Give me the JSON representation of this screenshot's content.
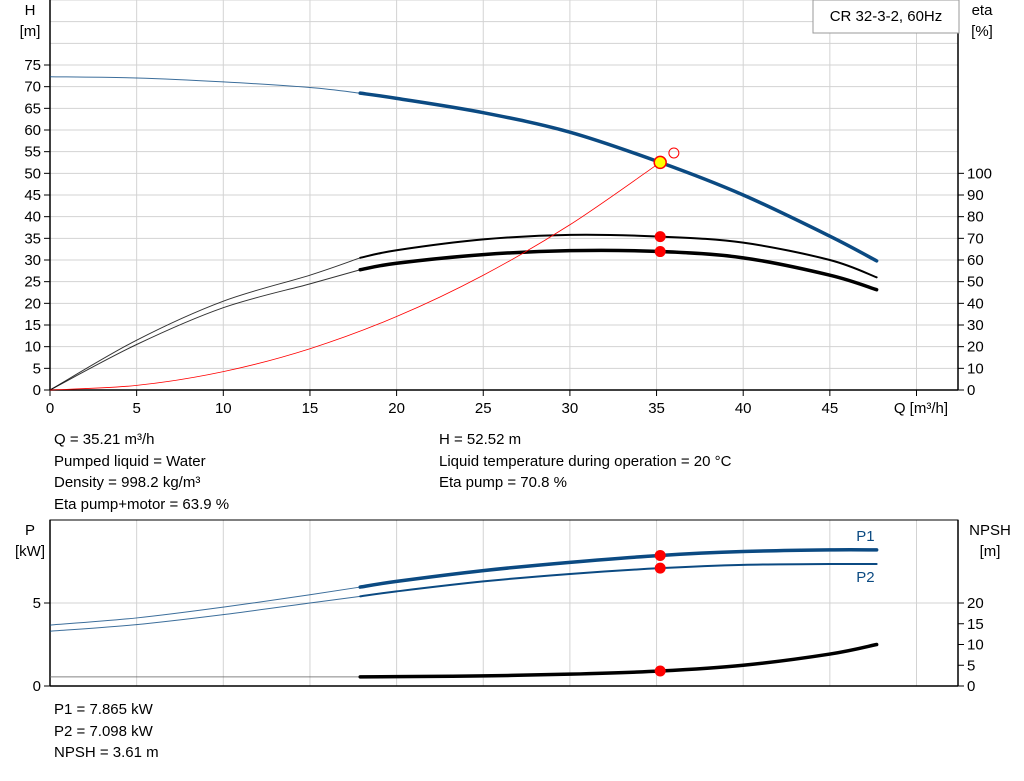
{
  "chart_data": [
    {
      "type": "line",
      "title": "CR 32-3-2, 60Hz",
      "xlabel": "Q [m³/h]",
      "ylabel": "H",
      "ylabel_unit": "[m]",
      "y2label": "eta",
      "y2label_unit": "[%]",
      "xlim": [
        0,
        52.4
      ],
      "ylim": [
        0,
        90
      ],
      "y2lim": [
        0,
        180
      ],
      "xticks": [
        0,
        5,
        10,
        15,
        20,
        25,
        30,
        35,
        40,
        45
      ],
      "yticks": [
        0,
        5,
        10,
        15,
        20,
        25,
        30,
        35,
        40,
        45,
        50,
        55,
        60,
        65,
        70,
        75
      ],
      "y2ticks": [
        0,
        10,
        20,
        30,
        40,
        50,
        60,
        70,
        80,
        90,
        100
      ],
      "grid": true,
      "series": [
        {
          "id": "H",
          "axis": "left",
          "color": "#0b4a82",
          "x": [
            0,
            5,
            10,
            15,
            17.9,
            20,
            25,
            30,
            35.21,
            40,
            45,
            47.7
          ],
          "y": [
            72.3,
            72.0,
            71.1,
            69.8,
            68.5,
            67.3,
            64.0,
            59.5,
            52.52,
            45.0,
            35.5,
            29.8
          ]
        },
        {
          "id": "eta-pump",
          "axis": "right",
          "color": "#000000",
          "x": [
            0,
            5,
            10,
            15,
            17.9,
            20,
            25,
            30,
            35.21,
            40,
            45,
            47.7
          ],
          "y": [
            0,
            23,
            41,
            53,
            61,
            64.5,
            69.5,
            71.6,
            70.8,
            68,
            60,
            52
          ]
        },
        {
          "id": "eta-pump-motor",
          "axis": "right",
          "color": "#000000",
          "x": [
            0,
            5,
            10,
            15,
            17.9,
            20,
            25,
            30,
            35.21,
            40,
            45,
            47.7
          ],
          "y": [
            0,
            21,
            38,
            49,
            55.5,
            58.5,
            62.5,
            64.3,
            63.9,
            61,
            53,
            46.3
          ]
        },
        {
          "id": "system-curve",
          "axis": "left",
          "color": "#ff0000",
          "x": [
            0,
            5,
            10,
            15,
            20,
            25,
            30,
            35.21
          ],
          "y": [
            0,
            1.06,
            4.24,
            9.53,
            16.95,
            26.48,
            38.13,
            52.52
          ]
        }
      ],
      "duty_points": [
        {
          "series": "H",
          "x": 35.21,
          "y": 52.52
        },
        {
          "series": "eta-pump",
          "x": 35.21,
          "y": 70.8
        },
        {
          "series": "eta-pump-motor",
          "x": 35.21,
          "y": 63.9
        }
      ],
      "open_marker": {
        "x": 36.0,
        "y": 54.7
      },
      "info": {
        "q": "Q = 35.21 m³/h",
        "h": "H = 52.52 m",
        "liquid": "Pumped liquid = Water",
        "temp": "Liquid temperature during operation = 20 °C",
        "density": "Density = 998.2 kg/m³",
        "eta_pump": "Eta pump = 70.8 %",
        "eta_pump_motor": "Eta pump+motor = 63.9 %"
      }
    },
    {
      "type": "line",
      "ylabel": "P",
      "ylabel_unit": "[kW]",
      "y2label": "NPSH",
      "y2label_unit": "[m]",
      "xlim": [
        0,
        52.4
      ],
      "ylim": [
        0,
        10
      ],
      "y2lim": [
        0,
        40
      ],
      "yticks": [
        0,
        5
      ],
      "y2ticks": [
        0,
        5,
        10,
        15,
        20
      ],
      "grid": true,
      "series": [
        {
          "id": "P1",
          "name": "P1",
          "axis": "left",
          "color": "#0b4a82",
          "x": [
            0,
            5,
            10,
            15,
            17.9,
            20,
            25,
            30,
            35.21,
            40,
            45,
            47.7
          ],
          "y": [
            3.67,
            4.1,
            4.75,
            5.5,
            5.96,
            6.3,
            6.95,
            7.45,
            7.865,
            8.1,
            8.2,
            8.2
          ]
        },
        {
          "id": "P2",
          "name": "P2",
          "axis": "left",
          "color": "#0b4a82",
          "x": [
            0,
            5,
            10,
            15,
            17.9,
            20,
            25,
            30,
            35.21,
            40,
            45,
            47.7
          ],
          "y": [
            3.3,
            3.7,
            4.3,
            5.0,
            5.4,
            5.7,
            6.3,
            6.75,
            7.098,
            7.3,
            7.35,
            7.35
          ]
        },
        {
          "id": "NPSH",
          "axis": "right",
          "color": "#000000",
          "x": [
            0,
            5,
            10,
            15,
            17.9,
            20,
            25,
            30,
            35.21,
            40,
            45,
            47.7
          ],
          "y": [
            2.2,
            2.2,
            2.2,
            2.2,
            2.2,
            2.25,
            2.45,
            2.85,
            3.61,
            5.0,
            7.7,
            10.0
          ]
        }
      ],
      "duty_points": [
        {
          "series": "P1",
          "x": 35.21,
          "y": 7.865
        },
        {
          "series": "P2",
          "x": 35.21,
          "y": 7.098
        },
        {
          "series": "NPSH",
          "x": 35.21,
          "y": 3.61
        }
      ],
      "info": {
        "p1": "P1 = 7.865 kW",
        "p2": "P2 = 7.098 kW",
        "npsh": "NPSH = 3.61 m"
      }
    }
  ],
  "colors": {
    "curve_blue": "#0b4a82",
    "duty_point": "#ff0000",
    "duty_highlight": "#ffff00",
    "grid": "#d3d3d3"
  }
}
